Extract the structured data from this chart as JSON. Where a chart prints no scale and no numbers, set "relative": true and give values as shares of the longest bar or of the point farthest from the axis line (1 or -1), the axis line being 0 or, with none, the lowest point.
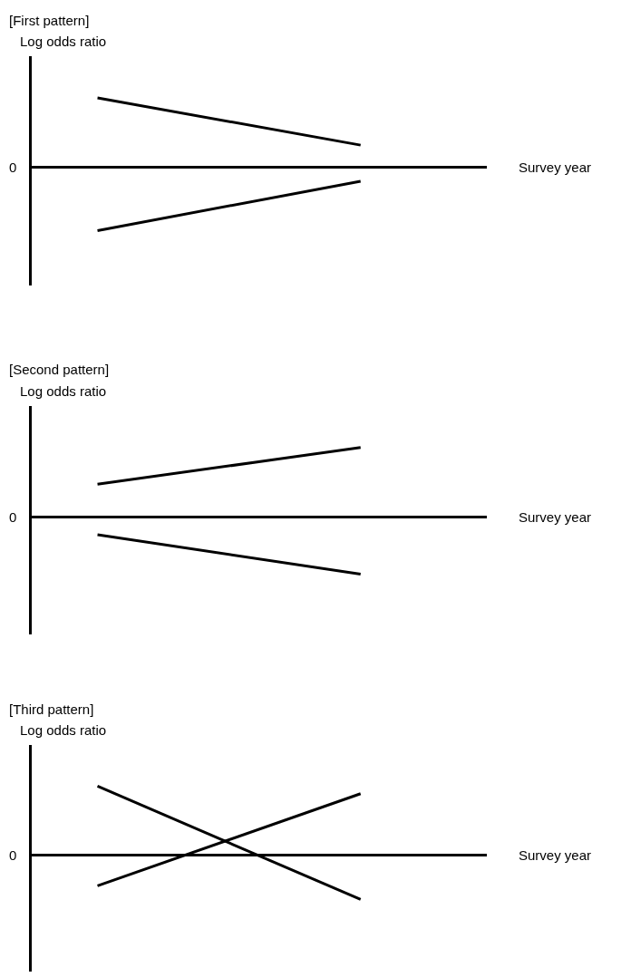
{
  "chart_data": [
    {
      "type": "line",
      "title": "[First pattern]",
      "ylabel": "Log odds ratio",
      "xlabel": "Survey year",
      "relative": true,
      "annotations": [
        "0"
      ],
      "categories": [
        null,
        null
      ],
      "series": [
        {
          "color": "#000000",
          "values": [
            1,
            0.32
          ]
        },
        {
          "color": "#000000",
          "values": [
            -0.91,
            -0.2
          ]
        }
      ]
    },
    {
      "type": "line",
      "title": "[Second pattern]",
      "ylabel": "Log odds ratio",
      "xlabel": "Survey year",
      "relative": true,
      "annotations": [
        "0"
      ],
      "categories": [
        null,
        null
      ],
      "series": [
        {
          "color": "#000000",
          "values": [
            0.47,
            1
          ]
        },
        {
          "color": "#000000",
          "values": [
            -0.26,
            -0.83
          ]
        }
      ]
    },
    {
      "type": "line",
      "title": "[Third pattern]",
      "ylabel": "Log odds ratio",
      "xlabel": "Survey year",
      "relative": true,
      "annotations": [
        "0"
      ],
      "categories": [
        null,
        null
      ],
      "series": [
        {
          "color": "#000000",
          "values": [
            -0.45,
            0.89
          ]
        },
        {
          "color": "#000000",
          "values": [
            1,
            -0.65
          ]
        }
      ]
    }
  ]
}
